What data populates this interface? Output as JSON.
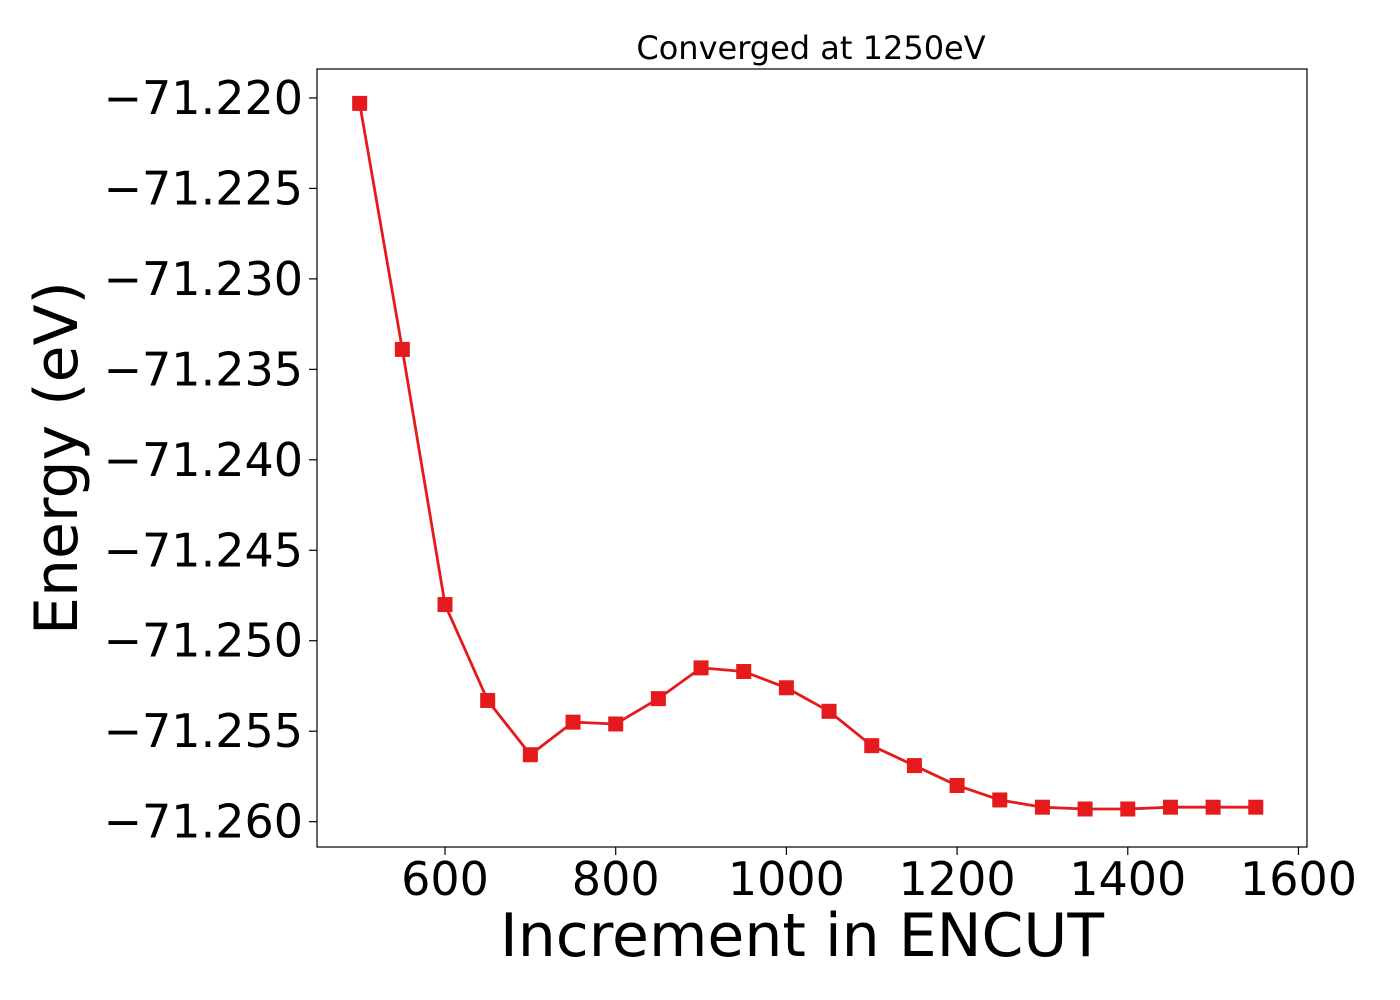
{
  "chart_data": {
    "type": "line",
    "title": "Converged at 1250eV",
    "xlabel": "Increment in ENCUT",
    "ylabel": "Energy (eV)",
    "xlim": [
      450,
      1610
    ],
    "ylim": [
      -71.2614,
      -71.2184
    ],
    "xticks": [
      600,
      800,
      1000,
      1200,
      1400,
      1600
    ],
    "xtick_labels": [
      "600",
      "800",
      "1000",
      "1200",
      "1400",
      "1600"
    ],
    "yticks": [
      -71.22,
      -71.225,
      -71.23,
      -71.235,
      -71.24,
      -71.245,
      -71.25,
      -71.255,
      -71.26
    ],
    "ytick_labels": [
      "−71.220",
      "−71.225",
      "−71.230",
      "−71.235",
      "−71.240",
      "−71.245",
      "−71.250",
      "−71.255",
      "−71.260"
    ],
    "grid": false,
    "legend": "none",
    "series": [
      {
        "color": "#e41a1c",
        "marker": "square",
        "x": [
          500,
          550,
          600,
          650,
          700,
          750,
          800,
          850,
          900,
          950,
          1000,
          1050,
          1100,
          1150,
          1200,
          1250,
          1300,
          1350,
          1400,
          1450,
          1500,
          1550
        ],
        "y": [
          -71.2203,
          -71.2339,
          -71.248,
          -71.2533,
          -71.2563,
          -71.2545,
          -71.2546,
          -71.2532,
          -71.2515,
          -71.2517,
          -71.2526,
          -71.2539,
          -71.2558,
          -71.2569,
          -71.258,
          -71.2588,
          -71.2592,
          -71.2593,
          -71.2593,
          -71.2592,
          -71.2592,
          -71.2592
        ]
      }
    ]
  }
}
